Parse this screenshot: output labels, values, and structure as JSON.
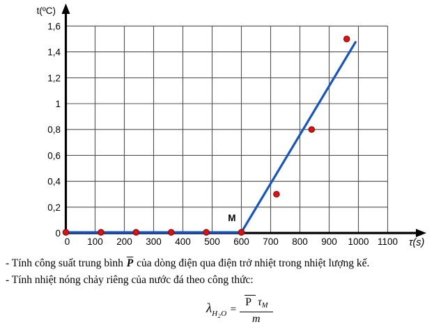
{
  "chart": {
    "y_axis_title": "t(ºC)",
    "x_axis_title": "τ(s)",
    "m_label": "M",
    "x_tick_values": [
      0,
      100,
      200,
      300,
      400,
      500,
      600,
      700,
      800,
      900,
      1000,
      1100
    ],
    "x_tick_labels": [
      "0",
      "100",
      "200",
      "300",
      "400",
      "500",
      "600",
      "700",
      "800",
      "900",
      "1000",
      "1100"
    ],
    "y_tick_values": [
      0,
      0.2,
      0.4,
      0.6,
      0.8,
      1,
      1.2,
      1.4,
      1.6
    ],
    "y_tick_labels": [
      "0",
      "0,2",
      "0,4",
      "0,6",
      "0,8",
      "1",
      "1,2",
      "1,4",
      "1,6"
    ],
    "colors": {
      "line": "#1553c8",
      "point_fill": "#dd1111",
      "point_stroke": "#7a0000",
      "grid": "#4f4f4f",
      "axis": "#000000"
    }
  },
  "chart_data": {
    "type": "scatter",
    "title": "",
    "xlabel": "τ(s)",
    "ylabel": "t(ºC)",
    "xlim": [
      0,
      1200
    ],
    "ylim": [
      0,
      1.6
    ],
    "grid": true,
    "legend": false,
    "points_x": [
      0,
      120,
      240,
      360,
      480,
      600,
      720,
      840,
      960
    ],
    "points_y": [
      0,
      0,
      0,
      0,
      0,
      0,
      0.3,
      0.8,
      1.5
    ],
    "fit_line_segments": [
      [
        [
          0,
          0
        ],
        [
          600,
          0
        ]
      ],
      [
        [
          600,
          0
        ],
        [
          990,
          1.47
        ]
      ]
    ],
    "annotations": [
      {
        "text": "M",
        "x": 600,
        "y": 0
      }
    ]
  },
  "text": {
    "line1_prefix": "- Tính công suất trung bình ",
    "line1_pbar": "P",
    "line1_suffix": " của dòng điện qua điện trở nhiệt trong nhiệt lượng kế.",
    "line2": "- Tính nhiệt nóng chảy riêng của nước đá theo công thức:"
  },
  "formula": {
    "lambda": "λ",
    "sub_h": "H",
    "sub_2": "2",
    "sub_o": "O",
    "equals": "=",
    "num_p": "P",
    "num_tau": "τ",
    "num_tau_sub": "M",
    "denominator_m": "m"
  }
}
